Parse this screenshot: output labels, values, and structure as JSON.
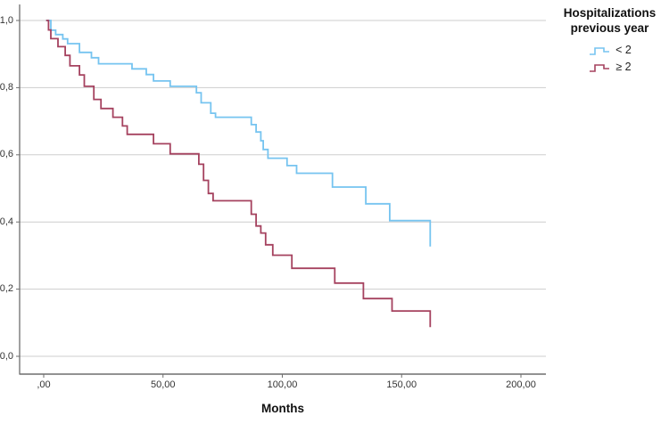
{
  "figure": {
    "xlabel": "Months",
    "legend": {
      "title": "Hospitalizations previous year"
    }
  },
  "chart_data": {
    "type": "line",
    "subtype": "kaplan-meier-step-survival",
    "title": "",
    "xlabel": "Months",
    "ylabel": "",
    "xlim": [
      0,
      210
    ],
    "ylim": [
      0.0,
      1.0
    ],
    "x_ticks": [
      0,
      50,
      100,
      150,
      200
    ],
    "x_ticklabels": [
      ",00",
      "50,00",
      "100,00",
      "150,00",
      "200,00"
    ],
    "y_ticks": [
      0.0,
      0.2,
      0.4,
      0.6,
      0.8,
      1.0
    ],
    "y_ticklabels": [
      "0,0",
      "0,2",
      "0,4",
      "0,6",
      "0,8",
      "1,0"
    ],
    "grid": "horizontal",
    "legend_position": "outside-top-right",
    "colors": {
      "grid": "#cdcdcd",
      "axis": "#6e6e6e",
      "tick_text": "#333333"
    },
    "series": [
      {
        "name": "< 2",
        "color": "#76c4f0",
        "points": [
          [
            1,
            1.0
          ],
          [
            3,
            0.971
          ],
          [
            5,
            0.958
          ],
          [
            8,
            0.945
          ],
          [
            10,
            0.931
          ],
          [
            15,
            0.905
          ],
          [
            20,
            0.889
          ],
          [
            23,
            0.871
          ],
          [
            37,
            0.856
          ],
          [
            43,
            0.839
          ],
          [
            46,
            0.82
          ],
          [
            53,
            0.804
          ],
          [
            64,
            0.785
          ],
          [
            66,
            0.755
          ],
          [
            70,
            0.724
          ],
          [
            72,
            0.712
          ],
          [
            87,
            0.69
          ],
          [
            89,
            0.668
          ],
          [
            91,
            0.642
          ],
          [
            92,
            0.616
          ],
          [
            94,
            0.59
          ],
          [
            102,
            0.568
          ],
          [
            106,
            0.545
          ],
          [
            121,
            0.504
          ],
          [
            135,
            0.454
          ],
          [
            145,
            0.404
          ],
          [
            162,
            0.327
          ]
        ]
      },
      {
        "name": "≥ 2",
        "color": "#a5425f",
        "points": [
          [
            1,
            1.0
          ],
          [
            2,
            0.972
          ],
          [
            3,
            0.946
          ],
          [
            6,
            0.922
          ],
          [
            9,
            0.896
          ],
          [
            11,
            0.865
          ],
          [
            15,
            0.838
          ],
          [
            17,
            0.804
          ],
          [
            21,
            0.765
          ],
          [
            24,
            0.738
          ],
          [
            29,
            0.712
          ],
          [
            33,
            0.686
          ],
          [
            35,
            0.661
          ],
          [
            46,
            0.633
          ],
          [
            53,
            0.603
          ],
          [
            65,
            0.572
          ],
          [
            67,
            0.524
          ],
          [
            69,
            0.485
          ],
          [
            71,
            0.463
          ],
          [
            87,
            0.423
          ],
          [
            89,
            0.388
          ],
          [
            91,
            0.367
          ],
          [
            93,
            0.332
          ],
          [
            96,
            0.301
          ],
          [
            104,
            0.262
          ],
          [
            122,
            0.218
          ],
          [
            134,
            0.172
          ],
          [
            146,
            0.135
          ],
          [
            162,
            0.087
          ]
        ]
      }
    ]
  }
}
